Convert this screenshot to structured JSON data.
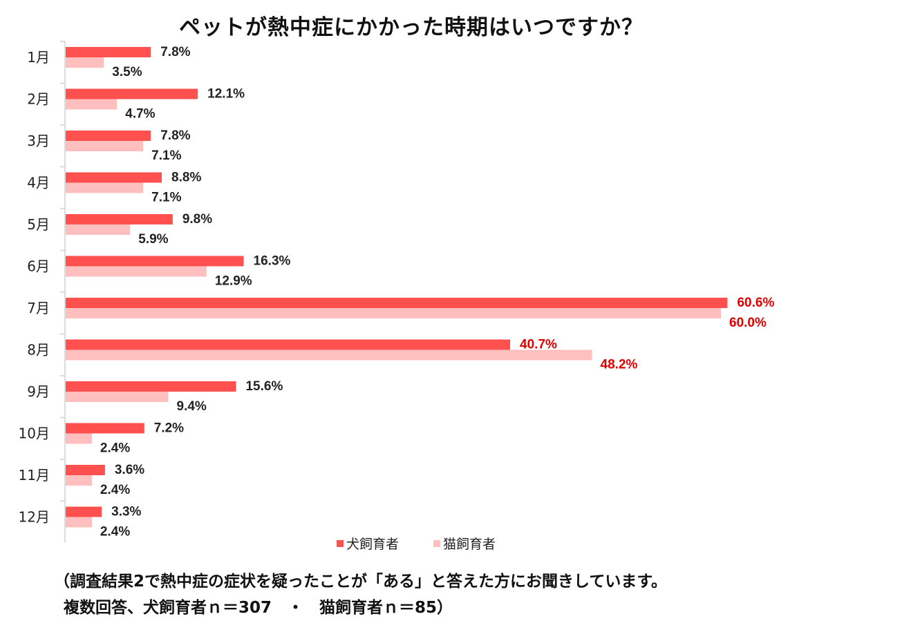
{
  "title": "ペットが熱中症にかかった時期はいつですか？",
  "footnote_line1": "（調査結果2で熱中症の症状を疑ったことが「ある」と答えた方にお聞きしています。",
  "footnote_line2": "複数回答、犬飼育者ｎ＝307　・　猫飼育者ｎ＝85）",
  "colors": {
    "dog": "#ff5050",
    "cat": "#ffbfbf",
    "highlight": "#e00000",
    "label": "#222222"
  },
  "chart_data": {
    "type": "bar",
    "orientation": "horizontal",
    "title": "ペットが熱中症にかかった時期はいつですか？",
    "categories": [
      "1月",
      "2月",
      "3月",
      "4月",
      "5月",
      "6月",
      "7月",
      "8月",
      "9月",
      "10月",
      "11月",
      "12月"
    ],
    "series": [
      {
        "name": "犬飼育者",
        "values": [
          7.8,
          12.1,
          7.8,
          8.8,
          9.8,
          16.3,
          60.6,
          40.7,
          15.6,
          7.2,
          3.6,
          3.3
        ],
        "labels": [
          "7.8%",
          "12.1%",
          "7.8%",
          "8.8%",
          "9.8%",
          "16.3%",
          "60.6%",
          "40.7%",
          "15.6%",
          "7.2%",
          "3.6%",
          "3.3%"
        ]
      },
      {
        "name": "猫飼育者",
        "values": [
          3.5,
          4.7,
          7.1,
          7.1,
          5.9,
          12.9,
          60.0,
          48.2,
          9.4,
          2.4,
          2.4,
          2.4
        ],
        "labels": [
          "3.5%",
          "4.7%",
          "7.1%",
          "7.1%",
          "5.9%",
          "12.9%",
          "60.0%",
          "48.2%",
          "9.4%",
          "2.4%",
          "2.4%",
          "2.4%"
        ]
      }
    ],
    "highlighted_categories": [
      "7月",
      "8月"
    ],
    "legend": "bottom",
    "grid": false
  }
}
